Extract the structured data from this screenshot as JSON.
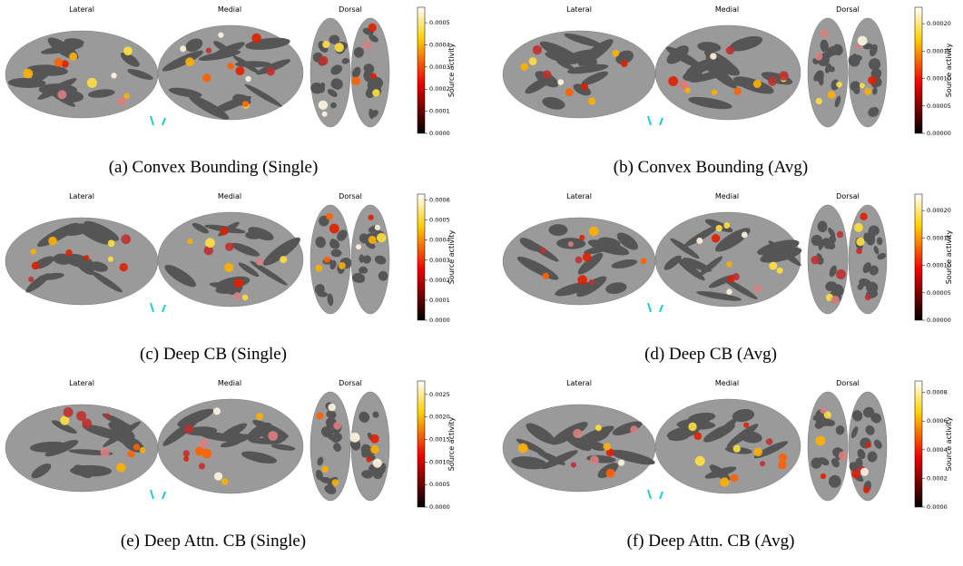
{
  "panels": [
    {
      "views": [
        "Lateral",
        "Medial",
        "Dorsal"
      ],
      "colorbar": {
        "label": "Source activity",
        "ylim": [
          0,
          0.00057
        ],
        "ticks": [
          {
            "value": 0,
            "label": "0.0000"
          },
          0.0001,
          0.0002,
          0.0003,
          0.0004,
          0.0005
        ]
      },
      "caption": "(a) Convex Bounding (Single)"
    },
    {
      "views": [
        "Lateral",
        "Medial",
        "Dorsal"
      ],
      "colorbar": {
        "label": "Source activity",
        "ylim": [
          0,
          0.00023
        ],
        "ticks": [
          {
            "value": 0,
            "label": "0.00000"
          },
          5e-05,
          {
            "value": 0.0001,
            "label": "0.00010"
          },
          0.00015,
          {
            "value": 0.0002,
            "label": "0.00020"
          }
        ]
      },
      "caption": "(b) Convex Bounding (Avg)"
    },
    {
      "views": [
        "Lateral",
        "Medial",
        "Dorsal"
      ],
      "colorbar": {
        "label": "Source activity",
        "ylim": [
          0,
          0.00063
        ],
        "ticks": [
          {
            "value": 0,
            "label": "0.0000"
          },
          0.0001,
          0.0002,
          0.0003,
          0.0004,
          0.0005,
          0.0006
        ]
      },
      "caption": "(c) Deep CB (Single)"
    },
    {
      "views": [
        "Lateral",
        "Medial",
        "Dorsal"
      ],
      "colorbar": {
        "label": "Source activity",
        "ylim": [
          0,
          0.00023
        ],
        "ticks": [
          {
            "value": 0,
            "label": "0.00000"
          },
          5e-05,
          {
            "value": 0.0001,
            "label": "0.00010"
          },
          0.00015,
          {
            "value": 0.0002,
            "label": "0.00020"
          }
        ]
      },
      "caption": "(d) Deep CB (Avg)"
    },
    {
      "views": [
        "Lateral",
        "Medial",
        "Dorsal"
      ],
      "colorbar": {
        "label": "Source activity",
        "ylim": [
          0,
          0.0028
        ],
        "ticks": [
          {
            "value": 0,
            "label": "0.0000"
          },
          0.0005,
          {
            "value": 0.001,
            "label": "0.0010"
          },
          0.0015,
          {
            "value": 0.002,
            "label": "0.0020"
          },
          0.0025
        ]
      },
      "caption": "(e) Deep Attn. CB (Single)"
    },
    {
      "views": [
        "Lateral",
        "Medial",
        "Dorsal"
      ],
      "colorbar": {
        "label": "Source activity",
        "ylim": [
          0,
          0.00088
        ],
        "ticks": [
          {
            "value": 0,
            "label": "0.0000"
          },
          0.0002,
          0.0004,
          0.0006,
          0.0008
        ]
      },
      "caption": "(f) Deep Attn. CB (Avg)"
    }
  ]
}
